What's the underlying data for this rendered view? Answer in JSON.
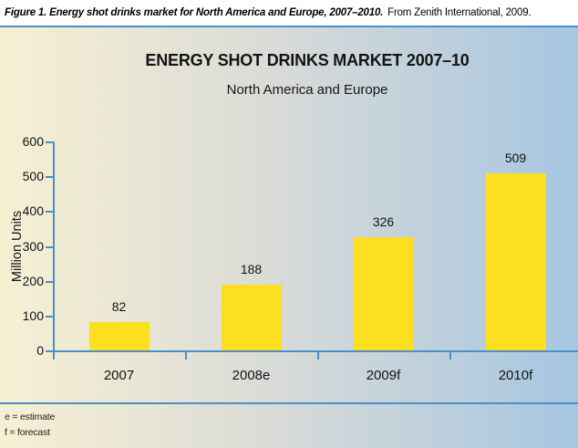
{
  "caption": {
    "figure": "Figure 1. Energy shot drinks market for North America and Europe, 2007–2010.",
    "source": "From Zenith International, 2009."
  },
  "chart_data": {
    "type": "bar",
    "title": "ENERGY SHOT DRINKS MARKET 2007–10",
    "subtitle": "North America and Europe",
    "categories": [
      "2007",
      "2008e",
      "2009f",
      "2010f"
    ],
    "values": [
      82,
      188,
      326,
      509
    ],
    "ylabel": "Million Units",
    "xlabel": "",
    "ylim": [
      0,
      600
    ],
    "ytick_step": 100,
    "grid": false,
    "legend": "none",
    "data_labels": true
  },
  "footnotes": [
    "e = estimate",
    "f = forecast"
  ],
  "colors": {
    "bar_yellow": "#fcdf1f",
    "axis_blue": "#4a90c8",
    "background_left": "#f6f0d3",
    "background_right": "#a6c6e1",
    "text": "#141414"
  }
}
